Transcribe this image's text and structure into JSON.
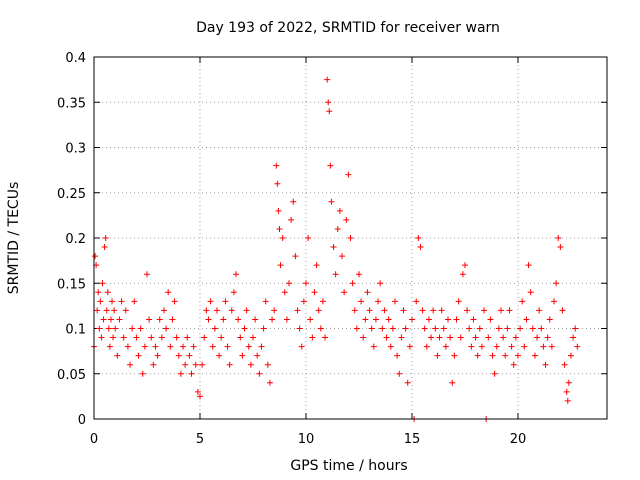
{
  "chart_data": {
    "type": "scatter",
    "title": "Day 193 of 2022, SRMTID for receiver warn",
    "xlabel": "GPS time / hours",
    "ylabel": "SRMTID / TECUs",
    "xlim": [
      0,
      24.2
    ],
    "ylim": [
      0,
      0.4
    ],
    "xticks": [
      0,
      5,
      10,
      15,
      20
    ],
    "yticks": [
      0,
      0.05,
      0.1,
      0.15,
      0.2,
      0.25,
      0.3,
      0.35,
      0.4
    ],
    "grid": true,
    "marker": "+",
    "color": "#ff0000",
    "series": [
      {
        "name": "SRMTID",
        "points": [
          [
            0.0,
            0.08
          ],
          [
            0.05,
            0.18
          ],
          [
            0.1,
            0.17
          ],
          [
            0.15,
            0.12
          ],
          [
            0.2,
            0.14
          ],
          [
            0.25,
            0.1
          ],
          [
            0.3,
            0.13
          ],
          [
            0.35,
            0.09
          ],
          [
            0.4,
            0.15
          ],
          [
            0.45,
            0.11
          ],
          [
            0.5,
            0.19
          ],
          [
            0.55,
            0.2
          ],
          [
            0.6,
            0.12
          ],
          [
            0.65,
            0.14
          ],
          [
            0.7,
            0.1
          ],
          [
            0.75,
            0.08
          ],
          [
            0.8,
            0.11
          ],
          [
            0.85,
            0.13
          ],
          [
            0.9,
            0.09
          ],
          [
            0.95,
            0.12
          ],
          [
            1.0,
            0.1
          ],
          [
            1.1,
            0.07
          ],
          [
            1.2,
            0.11
          ],
          [
            1.3,
            0.13
          ],
          [
            1.4,
            0.09
          ],
          [
            1.5,
            0.12
          ],
          [
            1.6,
            0.08
          ],
          [
            1.7,
            0.06
          ],
          [
            1.8,
            0.1
          ],
          [
            1.9,
            0.13
          ],
          [
            2.0,
            0.09
          ],
          [
            2.1,
            0.07
          ],
          [
            2.2,
            0.1
          ],
          [
            2.3,
            0.05
          ],
          [
            2.4,
            0.08
          ],
          [
            2.5,
            0.16
          ],
          [
            2.6,
            0.11
          ],
          [
            2.7,
            0.09
          ],
          [
            2.8,
            0.06
          ],
          [
            2.9,
            0.08
          ],
          [
            3.0,
            0.07
          ],
          [
            3.1,
            0.11
          ],
          [
            3.2,
            0.09
          ],
          [
            3.3,
            0.12
          ],
          [
            3.4,
            0.1
          ],
          [
            3.5,
            0.14
          ],
          [
            3.6,
            0.08
          ],
          [
            3.7,
            0.11
          ],
          [
            3.8,
            0.13
          ],
          [
            3.9,
            0.09
          ],
          [
            4.0,
            0.07
          ],
          [
            4.1,
            0.05
          ],
          [
            4.2,
            0.08
          ],
          [
            4.3,
            0.06
          ],
          [
            4.4,
            0.09
          ],
          [
            4.5,
            0.07
          ],
          [
            4.6,
            0.05
          ],
          [
            4.7,
            0.08
          ],
          [
            4.8,
            0.06
          ],
          [
            4.9,
            0.03
          ],
          [
            5.0,
            0.025
          ],
          [
            5.1,
            0.06
          ],
          [
            5.2,
            0.09
          ],
          [
            5.3,
            0.12
          ],
          [
            5.4,
            0.11
          ],
          [
            5.5,
            0.13
          ],
          [
            5.6,
            0.08
          ],
          [
            5.7,
            0.1
          ],
          [
            5.8,
            0.12
          ],
          [
            5.9,
            0.07
          ],
          [
            6.0,
            0.09
          ],
          [
            6.1,
            0.11
          ],
          [
            6.2,
            0.13
          ],
          [
            6.3,
            0.08
          ],
          [
            6.4,
            0.06
          ],
          [
            6.5,
            0.12
          ],
          [
            6.6,
            0.14
          ],
          [
            6.7,
            0.16
          ],
          [
            6.8,
            0.11
          ],
          [
            6.9,
            0.09
          ],
          [
            7.0,
            0.07
          ],
          [
            7.1,
            0.1
          ],
          [
            7.2,
            0.12
          ],
          [
            7.3,
            0.08
          ],
          [
            7.4,
            0.06
          ],
          [
            7.5,
            0.09
          ],
          [
            7.6,
            0.11
          ],
          [
            7.7,
            0.07
          ],
          [
            7.8,
            0.05
          ],
          [
            7.9,
            0.08
          ],
          [
            8.0,
            0.1
          ],
          [
            8.1,
            0.13
          ],
          [
            8.2,
            0.06
          ],
          [
            8.3,
            0.04
          ],
          [
            8.4,
            0.11
          ],
          [
            8.5,
            0.12
          ],
          [
            8.6,
            0.28
          ],
          [
            8.65,
            0.26
          ],
          [
            8.7,
            0.23
          ],
          [
            8.75,
            0.21
          ],
          [
            8.8,
            0.17
          ],
          [
            8.9,
            0.2
          ],
          [
            9.0,
            0.14
          ],
          [
            9.1,
            0.11
          ],
          [
            9.2,
            0.15
          ],
          [
            9.3,
            0.22
          ],
          [
            9.4,
            0.24
          ],
          [
            9.5,
            0.18
          ],
          [
            9.6,
            0.12
          ],
          [
            9.7,
            0.1
          ],
          [
            9.8,
            0.08
          ],
          [
            9.9,
            0.13
          ],
          [
            10.0,
            0.15
          ],
          [
            10.1,
            0.2
          ],
          [
            10.2,
            0.11
          ],
          [
            10.3,
            0.09
          ],
          [
            10.4,
            0.14
          ],
          [
            10.5,
            0.17
          ],
          [
            10.6,
            0.12
          ],
          [
            10.7,
            0.1
          ],
          [
            10.8,
            0.13
          ],
          [
            10.9,
            0.09
          ],
          [
            11.0,
            0.375
          ],
          [
            11.05,
            0.35
          ],
          [
            11.1,
            0.34
          ],
          [
            11.15,
            0.28
          ],
          [
            11.2,
            0.24
          ],
          [
            11.3,
            0.19
          ],
          [
            11.4,
            0.16
          ],
          [
            11.5,
            0.21
          ],
          [
            11.6,
            0.23
          ],
          [
            11.7,
            0.18
          ],
          [
            11.8,
            0.14
          ],
          [
            11.9,
            0.22
          ],
          [
            12.0,
            0.27
          ],
          [
            12.1,
            0.2
          ],
          [
            12.2,
            0.15
          ],
          [
            12.3,
            0.12
          ],
          [
            12.4,
            0.1
          ],
          [
            12.5,
            0.16
          ],
          [
            12.6,
            0.13
          ],
          [
            12.7,
            0.09
          ],
          [
            12.8,
            0.11
          ],
          [
            12.9,
            0.14
          ],
          [
            13.0,
            0.12
          ],
          [
            13.1,
            0.1
          ],
          [
            13.2,
            0.08
          ],
          [
            13.3,
            0.11
          ],
          [
            13.4,
            0.13
          ],
          [
            13.5,
            0.15
          ],
          [
            13.6,
            0.1
          ],
          [
            13.7,
            0.12
          ],
          [
            13.8,
            0.09
          ],
          [
            13.9,
            0.11
          ],
          [
            14.0,
            0.08
          ],
          [
            14.1,
            0.1
          ],
          [
            14.2,
            0.13
          ],
          [
            14.3,
            0.07
          ],
          [
            14.4,
            0.05
          ],
          [
            14.5,
            0.09
          ],
          [
            14.6,
            0.12
          ],
          [
            14.7,
            0.1
          ],
          [
            14.8,
            0.04
          ],
          [
            14.9,
            0.08
          ],
          [
            15.0,
            0.11
          ],
          [
            15.1,
            0.0
          ],
          [
            15.2,
            0.13
          ],
          [
            15.3,
            0.2
          ],
          [
            15.4,
            0.19
          ],
          [
            15.5,
            0.12
          ],
          [
            15.6,
            0.1
          ],
          [
            15.7,
            0.08
          ],
          [
            15.8,
            0.11
          ],
          [
            15.9,
            0.09
          ],
          [
            16.0,
            0.12
          ],
          [
            16.1,
            0.1
          ],
          [
            16.2,
            0.07
          ],
          [
            16.3,
            0.09
          ],
          [
            16.4,
            0.12
          ],
          [
            16.5,
            0.1
          ],
          [
            16.6,
            0.08
          ],
          [
            16.7,
            0.11
          ],
          [
            16.8,
            0.09
          ],
          [
            16.9,
            0.04
          ],
          [
            17.0,
            0.07
          ],
          [
            17.1,
            0.11
          ],
          [
            17.2,
            0.13
          ],
          [
            17.3,
            0.09
          ],
          [
            17.4,
            0.16
          ],
          [
            17.5,
            0.17
          ],
          [
            17.6,
            0.12
          ],
          [
            17.7,
            0.1
          ],
          [
            17.8,
            0.08
          ],
          [
            17.9,
            0.11
          ],
          [
            18.0,
            0.09
          ],
          [
            18.1,
            0.07
          ],
          [
            18.2,
            0.1
          ],
          [
            18.3,
            0.08
          ],
          [
            18.4,
            0.12
          ],
          [
            18.5,
            0.0
          ],
          [
            18.6,
            0.09
          ],
          [
            18.7,
            0.11
          ],
          [
            18.8,
            0.07
          ],
          [
            18.9,
            0.05
          ],
          [
            19.0,
            0.08
          ],
          [
            19.1,
            0.1
          ],
          [
            19.2,
            0.12
          ],
          [
            19.3,
            0.09
          ],
          [
            19.4,
            0.07
          ],
          [
            19.5,
            0.1
          ],
          [
            19.6,
            0.12
          ],
          [
            19.7,
            0.08
          ],
          [
            19.8,
            0.06
          ],
          [
            19.9,
            0.09
          ],
          [
            20.0,
            0.07
          ],
          [
            20.1,
            0.1
          ],
          [
            20.2,
            0.13
          ],
          [
            20.3,
            0.08
          ],
          [
            20.4,
            0.11
          ],
          [
            20.5,
            0.17
          ],
          [
            20.6,
            0.14
          ],
          [
            20.7,
            0.1
          ],
          [
            20.8,
            0.07
          ],
          [
            20.9,
            0.09
          ],
          [
            21.0,
            0.12
          ],
          [
            21.1,
            0.1
          ],
          [
            21.2,
            0.08
          ],
          [
            21.3,
            0.06
          ],
          [
            21.4,
            0.09
          ],
          [
            21.5,
            0.11
          ],
          [
            21.6,
            0.08
          ],
          [
            21.7,
            0.13
          ],
          [
            21.8,
            0.15
          ],
          [
            21.9,
            0.2
          ],
          [
            22.0,
            0.19
          ],
          [
            22.1,
            0.12
          ],
          [
            22.2,
            0.06
          ],
          [
            22.3,
            0.03
          ],
          [
            22.35,
            0.02
          ],
          [
            22.4,
            0.04
          ],
          [
            22.5,
            0.07
          ],
          [
            22.6,
            0.09
          ],
          [
            22.7,
            0.1
          ],
          [
            22.8,
            0.08
          ]
        ]
      }
    ]
  }
}
